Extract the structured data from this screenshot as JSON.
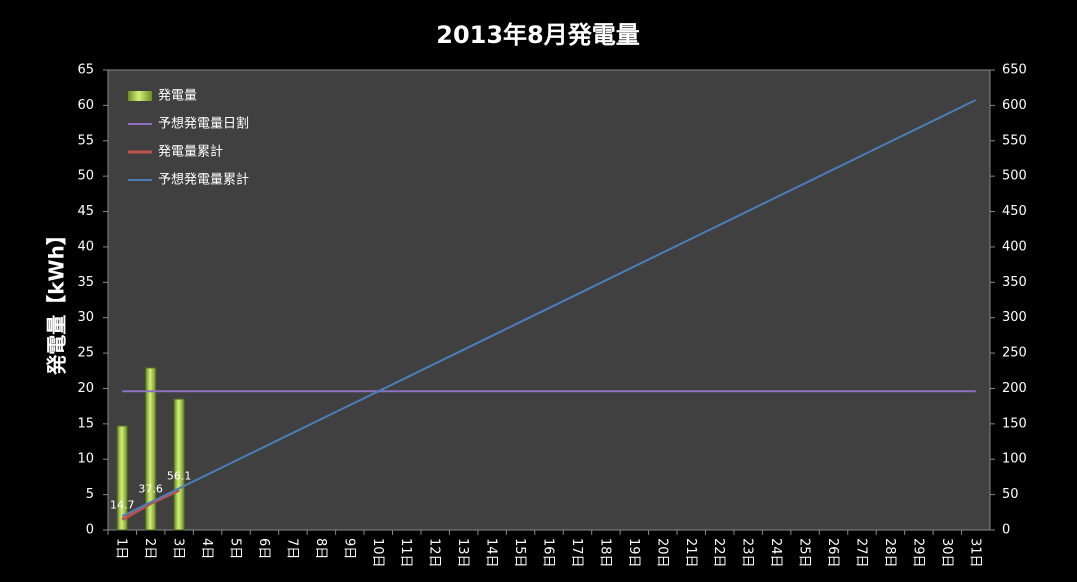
{
  "chart_data": {
    "type": "bar",
    "title": "2013年8月発電量",
    "y_label": "発電量【kWh】",
    "categories": [
      "1日",
      "2日",
      "3日",
      "4日",
      "5日",
      "6日",
      "7日",
      "8日",
      "9日",
      "10日",
      "11日",
      "12日",
      "13日",
      "14日",
      "15日",
      "16日",
      "17日",
      "18日",
      "19日",
      "20日",
      "21日",
      "22日",
      "23日",
      "24日",
      "25日",
      "26日",
      "27日",
      "28日",
      "29日",
      "30日",
      "31日"
    ],
    "series": [
      {
        "name": "発電量",
        "type": "bar",
        "color": "#9acd32",
        "axis": "y",
        "values": [
          14.7,
          22.9,
          18.5,
          null,
          null,
          null,
          null,
          null,
          null,
          null,
          null,
          null,
          null,
          null,
          null,
          null,
          null,
          null,
          null,
          null,
          null,
          null,
          null,
          null,
          null,
          null,
          null,
          null,
          null,
          null,
          null
        ]
      },
      {
        "name": "予想発電量日割",
        "type": "line",
        "color": "#8e6fc0",
        "axis": "y",
        "values": [
          19.6,
          19.6,
          19.6,
          19.6,
          19.6,
          19.6,
          19.6,
          19.6,
          19.6,
          19.6,
          19.6,
          19.6,
          19.6,
          19.6,
          19.6,
          19.6,
          19.6,
          19.6,
          19.6,
          19.6,
          19.6,
          19.6,
          19.6,
          19.6,
          19.6,
          19.6,
          19.6,
          19.6,
          19.6,
          19.6,
          19.6
        ]
      },
      {
        "name": "発電量累計",
        "type": "line",
        "color": "#c0504d",
        "axis": "y2",
        "data_labels": true,
        "values": [
          14.7,
          37.6,
          56.1,
          null,
          null,
          null,
          null,
          null,
          null,
          null,
          null,
          null,
          null,
          null,
          null,
          null,
          null,
          null,
          null,
          null,
          null,
          null,
          null,
          null,
          null,
          null,
          null,
          null,
          null,
          null,
          null
        ]
      },
      {
        "name": "予想発電量累計",
        "type": "line",
        "color": "#4a7ebb",
        "axis": "y2",
        "values": [
          19.6,
          39.2,
          58.8,
          78.4,
          98,
          117.6,
          137.2,
          156.8,
          176.4,
          196,
          215.6,
          235.2,
          254.8,
          274.4,
          294,
          313.6,
          333.2,
          352.8,
          372.4,
          392,
          411.6,
          431.2,
          450.8,
          470.4,
          490,
          509.6,
          529.2,
          548.8,
          568.4,
          588,
          607.6
        ]
      }
    ],
    "ylim": [
      0,
      65
    ],
    "yticks": [
      0,
      5,
      10,
      15,
      20,
      25,
      30,
      35,
      40,
      45,
      50,
      55,
      60,
      65
    ],
    "y2lim": [
      0,
      650
    ],
    "y2ticks": [
      0,
      50,
      100,
      150,
      200,
      250,
      300,
      350,
      400,
      450,
      500,
      550,
      600,
      650
    ],
    "legend": "top-left",
    "grid": false
  }
}
